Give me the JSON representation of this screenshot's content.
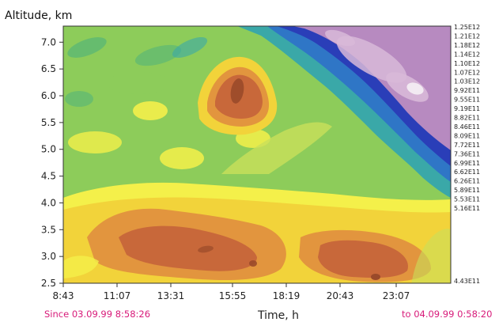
{
  "chart_data": {
    "type": "heatmap",
    "xlabel": "Time, h",
    "ylabel": "Altitude, km",
    "x_ticks": [
      "8:43",
      "11:07",
      "13:31",
      "15:55",
      "18:19",
      "20:43",
      "23:07"
    ],
    "y_ticks": [
      "2.5",
      "3.0",
      "3.5",
      "4.0",
      "4.5",
      "5.0",
      "5.5",
      "6.0",
      "6.5",
      "7.0"
    ],
    "ylim": [
      2.5,
      7.3
    ],
    "colorbar_labels": [
      "1.25E12",
      "1.21E12",
      "1.18E12",
      "1.14E12",
      "1.10E12",
      "1.07E12",
      "1.03E12",
      "9.92E11",
      "9.55E11",
      "9.19E11",
      "8.82E11",
      "8.46E11",
      "8.09E11",
      "7.72E11",
      "7.36E11",
      "6.99E11",
      "6.62E11",
      "6.26E11",
      "5.89E11",
      "5.53E11",
      "5.16E11",
      "4.43E11"
    ],
    "since_label": "Since 03.09.99  8:58:26",
    "to_label": "to 04.09.99  0:58:20",
    "colors": {
      "scale": [
        "#9a4a2a",
        "#c8683a",
        "#e2953e",
        "#f2d33a",
        "#f4f04a",
        "#c9e05a",
        "#8dcc5a",
        "#5cb873",
        "#3aa8a8",
        "#2f76c6",
        "#2a3eb8",
        "#b78ac0",
        "#d8b8d8",
        "#f2eaf2"
      ],
      "range_text": "#d81b7a"
    }
  }
}
